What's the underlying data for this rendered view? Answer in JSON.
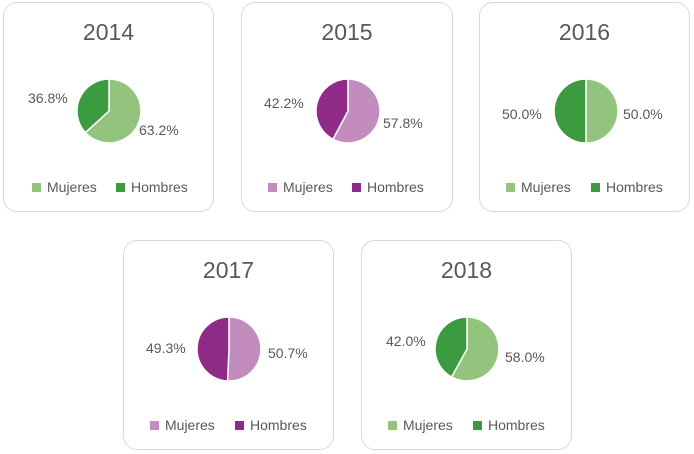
{
  "colors": {
    "green_light": "#93c47d",
    "green_dark": "#3c9a3f",
    "purple_light": "#c28dbd",
    "purple_dark": "#8f2a86"
  },
  "chart_data": [
    {
      "type": "pie",
      "title": "2014",
      "labels": [
        "Mujeres",
        "Hombres"
      ],
      "values": [
        63.2,
        36.8
      ],
      "value_labels": [
        "63.2%",
        "36.8%"
      ],
      "colors": [
        "#93c47d",
        "#3c9a3f"
      ],
      "legend": "bottom"
    },
    {
      "type": "pie",
      "title": "2015",
      "labels": [
        "Mujeres",
        "Hombres"
      ],
      "values": [
        57.8,
        42.2
      ],
      "value_labels": [
        "57.8%",
        "42.2%"
      ],
      "colors": [
        "#c28dbd",
        "#8f2a86"
      ],
      "legend": "bottom"
    },
    {
      "type": "pie",
      "title": "2016",
      "labels": [
        "Mujeres",
        "Hombres"
      ],
      "values": [
        50.0,
        50.0
      ],
      "value_labels": [
        "50.0%",
        "50.0%"
      ],
      "colors": [
        "#93c47d",
        "#3c9a3f"
      ],
      "legend": "bottom"
    },
    {
      "type": "pie",
      "title": "2017",
      "labels": [
        "Mujeres",
        "Hombres"
      ],
      "values": [
        50.7,
        49.3
      ],
      "value_labels": [
        "50.7%",
        "49.3%"
      ],
      "colors": [
        "#c28dbd",
        "#8f2a86"
      ],
      "legend": "bottom"
    },
    {
      "type": "pie",
      "title": "2018",
      "labels": [
        "Mujeres",
        "Hombres"
      ],
      "values": [
        58.0,
        42.0
      ],
      "value_labels": [
        "58.0%",
        "42.0%"
      ],
      "colors": [
        "#93c47d",
        "#3c9a3f"
      ],
      "legend": "bottom"
    }
  ]
}
